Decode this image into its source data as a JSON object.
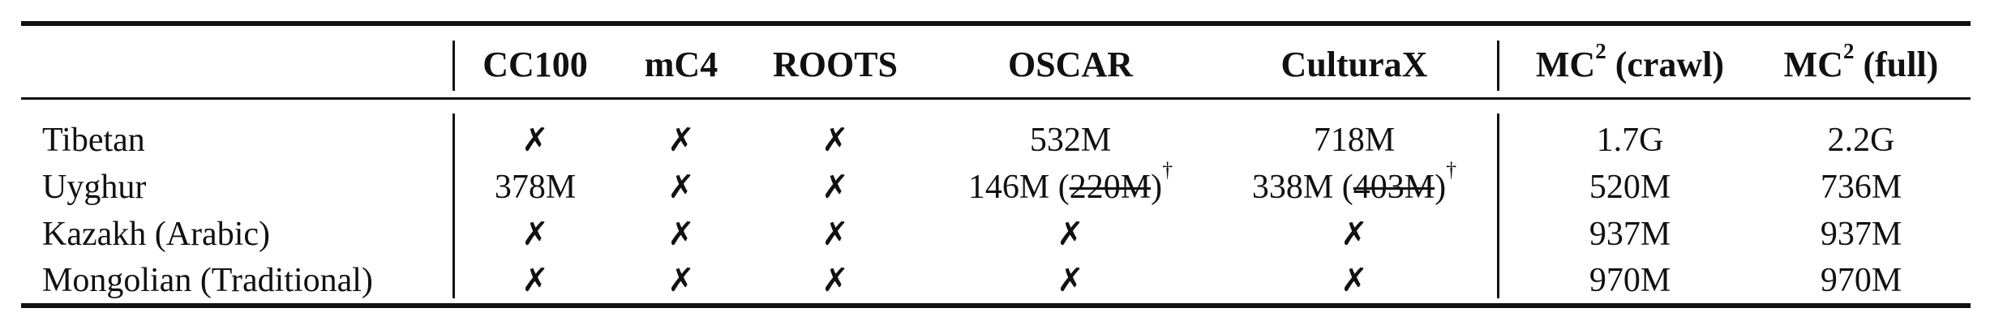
{
  "table": {
    "headers": [
      {
        "text": ""
      },
      {
        "text": "CC100"
      },
      {
        "text": "mC4"
      },
      {
        "text": "ROOTS"
      },
      {
        "text": "OSCAR"
      },
      {
        "text": "CulturaX"
      },
      {
        "text": "MC",
        "sup": "2",
        "suffix": " (crawl)"
      },
      {
        "text": "MC",
        "sup": "2",
        "suffix": " (full)"
      }
    ],
    "rows": [
      {
        "language": "Tibetan",
        "cells": [
          {
            "text": "✗"
          },
          {
            "text": "✗"
          },
          {
            "text": "✗"
          },
          {
            "text": "532M"
          },
          {
            "text": "718M"
          },
          {
            "text": "1.7G"
          },
          {
            "text": "2.2G"
          }
        ]
      },
      {
        "language": "Uyghur",
        "cells": [
          {
            "text": "378M"
          },
          {
            "text": "✗"
          },
          {
            "text": "✗"
          },
          {
            "text": "146M (",
            "strike": "220M",
            "after": ")",
            "sup": "†"
          },
          {
            "text": "338M (",
            "strike": "403M",
            "after": ")",
            "sup": "†"
          },
          {
            "text": "520M"
          },
          {
            "text": "736M"
          }
        ]
      },
      {
        "language": "Kazakh (Arabic)",
        "cells": [
          {
            "text": "✗"
          },
          {
            "text": "✗"
          },
          {
            "text": "✗"
          },
          {
            "text": "✗"
          },
          {
            "text": "✗"
          },
          {
            "text": "937M"
          },
          {
            "text": "937M"
          }
        ]
      },
      {
        "language": "Mongolian (Traditional)",
        "cells": [
          {
            "text": "✗"
          },
          {
            "text": "✗"
          },
          {
            "text": "✗"
          },
          {
            "text": "✗"
          },
          {
            "text": "✗"
          },
          {
            "text": "970M"
          },
          {
            "text": "970M"
          }
        ]
      }
    ]
  }
}
